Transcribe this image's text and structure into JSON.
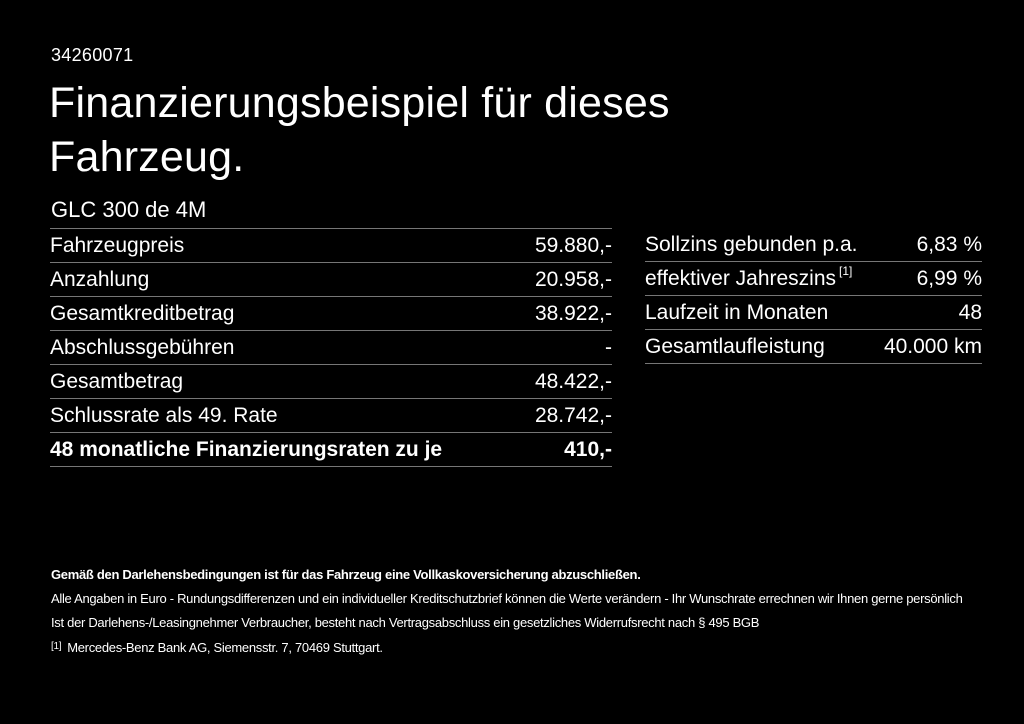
{
  "page": {
    "listing_id": "34260071",
    "title_line1": "Finanzierungsbeispiel für dieses",
    "title_line2": "Fahrzeug.",
    "vehicle_model": "GLC 300 de 4M"
  },
  "finance_table": {
    "rows": [
      {
        "label": "Fahrzeugpreis",
        "value": "59.880,-"
      },
      {
        "label": "Anzahlung",
        "value": "20.958,-"
      },
      {
        "label": "Gesamtkreditbetrag",
        "value": "38.922,-"
      },
      {
        "label": "Abschlussgebühren",
        "value": "-"
      },
      {
        "label": "Gesamtbetrag",
        "value": "48.422,-"
      },
      {
        "label": "Schlussrate als 49. Rate",
        "value": "28.742,-"
      },
      {
        "label": "48 monatliche Finanzierungsraten zu je",
        "value": "410,-"
      }
    ]
  },
  "conditions_table": {
    "rows": [
      {
        "label": "Sollzins gebunden p.a.",
        "value": "6,83 %"
      },
      {
        "label": "effektiver Jahreszins",
        "label_sup": "[1]",
        "value": "6,99 %"
      },
      {
        "label": "Laufzeit in Monaten",
        "value": "48"
      },
      {
        "label": "Gesamtlaufleistung",
        "value": "40.000 km"
      }
    ]
  },
  "footer": {
    "insurance_note": "Gemäß den Darlehensbedingungen ist für das Fahrzeug eine Vollkaskoversicherung abzuschließen.",
    "note_line1": "Alle Angaben in Euro - Rundungsdifferenzen und ein individueller Kreditschutzbrief können die Werte verändern - Ihr Wunschrate errechnen wir Ihnen gerne persönlich",
    "note_line2": "Ist der Darlehens-/Leasingnehmer Verbraucher, besteht nach Vertragsabschluss ein gesetzliches Widerrufsrecht nach § 495 BGB",
    "footnote_marker": "[1]",
    "footnote_text": "Mercedes-Benz Bank AG, Siemensstr. 7, 70469 Stuttgart."
  },
  "colors": {
    "background": "#000000",
    "text": "#ffffff",
    "divider": "#767676"
  }
}
